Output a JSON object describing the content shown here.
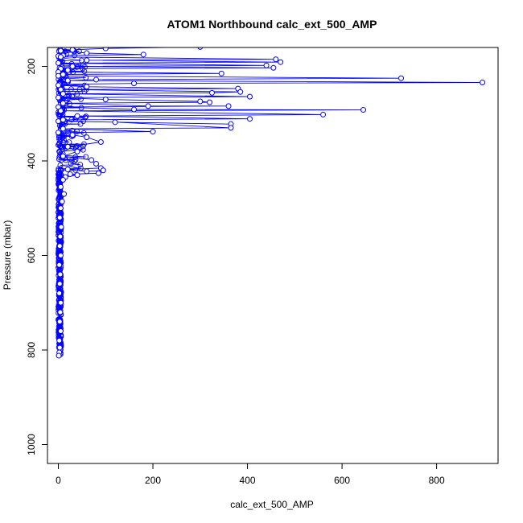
{
  "chart_data": {
    "type": "scatter",
    "title": "ATOM1 Northbound calc_ext_500_AMP",
    "xlabel": "calc_ext_500_AMP",
    "ylabel": "Pressure (mbar)",
    "xlim": [
      -23,
      930
    ],
    "ylim": [
      1040,
      160
    ],
    "y_reversed": true,
    "x_ticks": [
      0,
      200,
      400,
      600,
      800
    ],
    "y_ticks": [
      200,
      400,
      600,
      800,
      1000
    ],
    "marker": "open-circle",
    "connected": true,
    "series_color": "#0000ff",
    "grid": false,
    "legend": "none",
    "series": [
      {
        "points": [
          [
            300,
            159
          ],
          [
            100,
            162
          ],
          [
            30,
            165
          ],
          [
            5,
            167
          ],
          [
            60,
            172
          ],
          [
            180,
            175
          ],
          [
            10,
            177
          ],
          [
            0,
            178
          ],
          [
            5,
            180
          ],
          [
            460,
            185
          ],
          [
            60,
            187
          ],
          [
            470,
            191
          ],
          [
            0,
            193
          ],
          [
            440,
            198
          ],
          [
            30,
            200
          ],
          [
            455,
            203
          ],
          [
            5,
            205
          ],
          [
            20,
            208
          ],
          [
            0,
            212
          ],
          [
            345,
            215
          ],
          [
            10,
            217
          ],
          [
            0,
            220
          ],
          [
            725,
            225
          ],
          [
            80,
            228
          ],
          [
            20,
            230
          ],
          [
            897,
            234
          ],
          [
            160,
            236
          ],
          [
            2,
            238
          ],
          [
            0,
            240
          ],
          [
            60,
            243
          ],
          [
            380,
            247
          ],
          [
            5,
            249
          ],
          [
            385,
            254
          ],
          [
            325,
            256
          ],
          [
            10,
            258
          ],
          [
            405,
            264
          ],
          [
            0,
            266
          ],
          [
            100,
            270
          ],
          [
            300,
            274
          ],
          [
            320,
            276
          ],
          [
            10,
            278
          ],
          [
            190,
            284
          ],
          [
            360,
            284
          ],
          [
            0,
            286
          ],
          [
            160,
            291
          ],
          [
            645,
            292
          ],
          [
            5,
            294
          ],
          [
            560,
            302
          ],
          [
            40,
            305
          ],
          [
            405,
            311
          ],
          [
            10,
            313
          ],
          [
            0,
            316
          ],
          [
            365,
            322
          ],
          [
            120,
            318
          ],
          [
            365,
            330
          ],
          [
            10,
            332
          ],
          [
            200,
            338
          ],
          [
            0,
            340
          ],
          [
            30,
            345
          ],
          [
            60,
            350
          ],
          [
            90,
            360
          ],
          [
            20,
            370
          ],
          [
            40,
            380
          ],
          [
            10,
            390
          ],
          [
            70,
            398
          ],
          [
            80,
            406
          ],
          [
            90,
            415
          ],
          [
            20,
            418
          ],
          [
            60,
            422
          ],
          [
            95,
            420
          ],
          [
            85,
            426
          ],
          [
            25,
            428
          ],
          [
            40,
            430
          ],
          [
            15,
            434
          ],
          [
            10,
            440
          ],
          [
            5,
            455
          ],
          [
            12,
            470
          ],
          [
            8,
            486
          ],
          [
            5,
            500
          ],
          [
            3,
            520
          ],
          [
            6,
            540
          ],
          [
            4,
            560
          ],
          [
            3,
            580
          ],
          [
            5,
            600
          ],
          [
            2,
            620
          ],
          [
            4,
            640
          ],
          [
            3,
            660
          ],
          [
            2,
            680
          ],
          [
            5,
            700
          ],
          [
            4,
            720
          ],
          [
            3,
            740
          ],
          [
            5,
            760
          ],
          [
            2,
            780
          ],
          [
            3,
            795
          ],
          [
            2,
            805
          ],
          [
            1,
            812
          ]
        ]
      }
    ],
    "dense_band": {
      "x_range": [
        0,
        15
      ],
      "y_range": [
        160,
        812
      ]
    }
  }
}
